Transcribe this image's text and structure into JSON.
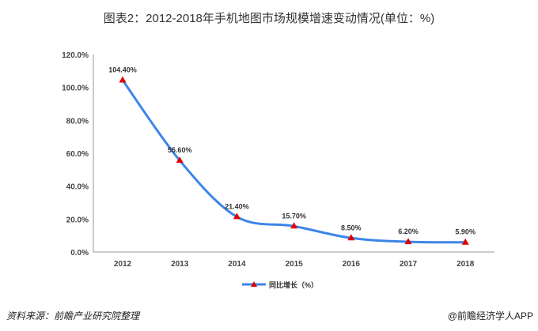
{
  "chart_data": {
    "type": "line",
    "title": "图表2：2012-2018年手机地图市场规模增速变动情况(单位：%)",
    "categories": [
      "2012",
      "2013",
      "2014",
      "2015",
      "2016",
      "2017",
      "2018"
    ],
    "series": [
      {
        "name": "同比增长（%）",
        "values": [
          104.4,
          55.6,
          21.4,
          15.7,
          8.5,
          6.2,
          5.9
        ],
        "labels": [
          "104.40%",
          "55.60%",
          "21.40%",
          "15.70%",
          "8.50%",
          "6.20%",
          "5.90%"
        ],
        "color": "#3d85e8",
        "marker_color": "#e00000"
      }
    ],
    "yticks": [
      "0.0%",
      "20.0%",
      "40.0%",
      "60.0%",
      "80.0%",
      "100.0%",
      "120.0%"
    ],
    "ylim": [
      0,
      120
    ],
    "legend": "bottom-center",
    "grid": false
  },
  "footer": {
    "source": "资料来源：前瞻产业研究院整理",
    "credit": "@前瞻经济学人APP"
  }
}
